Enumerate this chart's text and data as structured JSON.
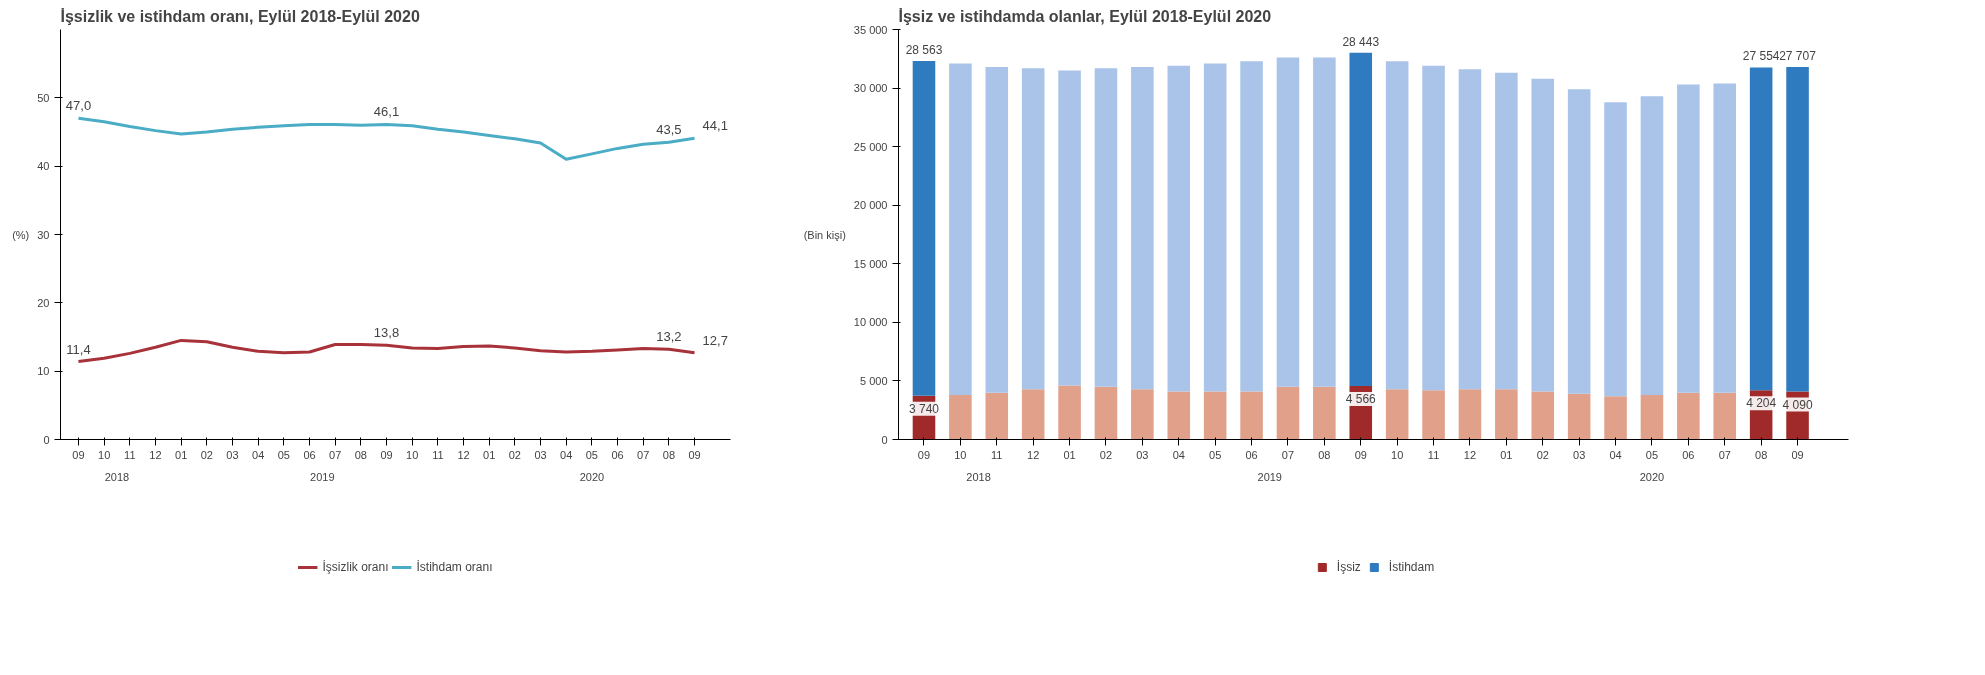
{
  "chart_data": [
    {
      "type": "line",
      "title": "İşsizlik ve istihdam oranı, Eylül 2018-Eylül 2020",
      "ylabel": "(%)",
      "categories": [
        "09",
        "10",
        "11",
        "12",
        "01",
        "02",
        "03",
        "04",
        "05",
        "06",
        "07",
        "08",
        "09",
        "10",
        "11",
        "12",
        "01",
        "02",
        "03",
        "04",
        "05",
        "06",
        "07",
        "08",
        "09"
      ],
      "annotations": [
        "2018",
        "2019",
        "2020"
      ],
      "ylim": [
        0,
        60
      ],
      "yticks": [
        0,
        10,
        20,
        30,
        40,
        50
      ],
      "legend": "bottom",
      "marker": "none",
      "line_style": "solid",
      "series": [
        {
          "name": "İşsizlik oranı",
          "color": "#a8323a",
          "values": [
            11.4,
            11.9,
            12.6,
            13.5,
            14.5,
            14.3,
            13.5,
            12.9,
            12.7,
            12.8,
            13.9,
            13.9,
            13.8,
            13.4,
            13.3,
            13.6,
            13.7,
            13.4,
            13.0,
            12.8,
            12.9,
            13.1,
            13.3,
            13.2,
            12.7
          ],
          "value_labels": [
            "11,4",
            null,
            null,
            null,
            null,
            null,
            null,
            null,
            null,
            null,
            null,
            null,
            "13,8",
            null,
            null,
            null,
            null,
            null,
            null,
            null,
            null,
            null,
            null,
            "13,2",
            "12,7"
          ]
        },
        {
          "name": "İstihdam oranı",
          "color": "#4bacc6",
          "values": [
            47.0,
            46.5,
            45.8,
            45.2,
            44.7,
            45.0,
            45.4,
            45.7,
            45.9,
            46.1,
            46.1,
            46.0,
            46.1,
            45.9,
            45.4,
            45.0,
            44.5,
            44.0,
            43.4,
            41.0,
            41.8,
            42.6,
            43.2,
            43.5,
            44.1
          ],
          "value_labels": [
            "47,0",
            null,
            null,
            null,
            null,
            null,
            null,
            null,
            null,
            null,
            null,
            null,
            "46,1",
            null,
            null,
            null,
            null,
            null,
            null,
            null,
            null,
            null,
            null,
            "43,5",
            "44,1"
          ]
        }
      ]
    },
    {
      "type": "bar",
      "stacked": true,
      "title": "İşsiz ve istihdamda olanlar, Eylül 2018-Eylül 2020",
      "ylabel": "(Bin kişi)",
      "categories": [
        "09",
        "10",
        "11",
        "12",
        "01",
        "02",
        "03",
        "04",
        "05",
        "06",
        "07",
        "08",
        "09",
        "10",
        "11",
        "12",
        "01",
        "02",
        "03",
        "04",
        "05",
        "06",
        "07",
        "08",
        "09"
      ],
      "annotations": [
        "2018",
        "2019",
        "2020"
      ],
      "ylim": [
        0,
        35000
      ],
      "yticks": [
        0,
        {
          "value": 5000,
          "label": "5 000"
        },
        {
          "value": 10000,
          "label": "10 000"
        },
        {
          "value": 15000,
          "label": "15 000"
        },
        {
          "value": 20000,
          "label": "20 000"
        },
        {
          "value": 25000,
          "label": "25 000"
        },
        {
          "value": 30000,
          "label": "30 000"
        },
        {
          "value": 35000,
          "label": "35 000"
        }
      ],
      "legend": "bottom",
      "series": [
        {
          "name": "İşsiz",
          "color": "#a02a2a",
          "colors": [
            "#a02a2a",
            "#e0a08a",
            "#e0a08a",
            "#e0a08a",
            "#e0a08a",
            "#e0a08a",
            "#e0a08a",
            "#e0a08a",
            "#e0a08a",
            "#e0a08a",
            "#e0a08a",
            "#e0a08a",
            "#a02a2a",
            "#e0a08a",
            "#e0a08a",
            "#e0a08a",
            "#e0a08a",
            "#e0a08a",
            "#e0a08a",
            "#e0a08a",
            "#e0a08a",
            "#e0a08a",
            "#e0a08a",
            "#a02a2a",
            "#a02a2a"
          ],
          "values": [
            3740,
            3800,
            4000,
            4300,
            4600,
            4500,
            4300,
            4100,
            4100,
            4100,
            4500,
            4500,
            4566,
            4300,
            4200,
            4300,
            4300,
            4100,
            3900,
            3700,
            3800,
            4000,
            4000,
            4204,
            4090
          ],
          "value_labels": [
            "3 740",
            null,
            null,
            null,
            null,
            null,
            null,
            null,
            null,
            null,
            null,
            null,
            "4 566",
            null,
            null,
            null,
            null,
            null,
            null,
            null,
            null,
            null,
            null,
            "4 204",
            "4 090"
          ]
        },
        {
          "name": "İstihdam",
          "color": "#2e7bbf",
          "colors": [
            "#2e7bbf",
            "#a9c4e8",
            "#a9c4e8",
            "#a9c4e8",
            "#a9c4e8",
            "#a9c4e8",
            "#a9c4e8",
            "#a9c4e8",
            "#a9c4e8",
            "#a9c4e8",
            "#a9c4e8",
            "#a9c4e8",
            "#2e7bbf",
            "#a9c4e8",
            "#a9c4e8",
            "#a9c4e8",
            "#a9c4e8",
            "#a9c4e8",
            "#a9c4e8",
            "#a9c4e8",
            "#a9c4e8",
            "#a9c4e8",
            "#a9c4e8",
            "#2e7bbf",
            "#2e7bbf"
          ],
          "values": [
            28563,
            28300,
            27800,
            27400,
            26900,
            27200,
            27500,
            27800,
            28000,
            28200,
            28100,
            28100,
            28443,
            28000,
            27700,
            27300,
            27000,
            26700,
            26000,
            25100,
            25500,
            26300,
            26400,
            27554,
            27707
          ],
          "value_labels": [
            "28 563",
            null,
            null,
            null,
            null,
            null,
            null,
            null,
            null,
            null,
            null,
            null,
            "28 443",
            null,
            null,
            null,
            null,
            null,
            null,
            null,
            null,
            null,
            null,
            "27 554",
            "27 707"
          ]
        }
      ]
    }
  ]
}
